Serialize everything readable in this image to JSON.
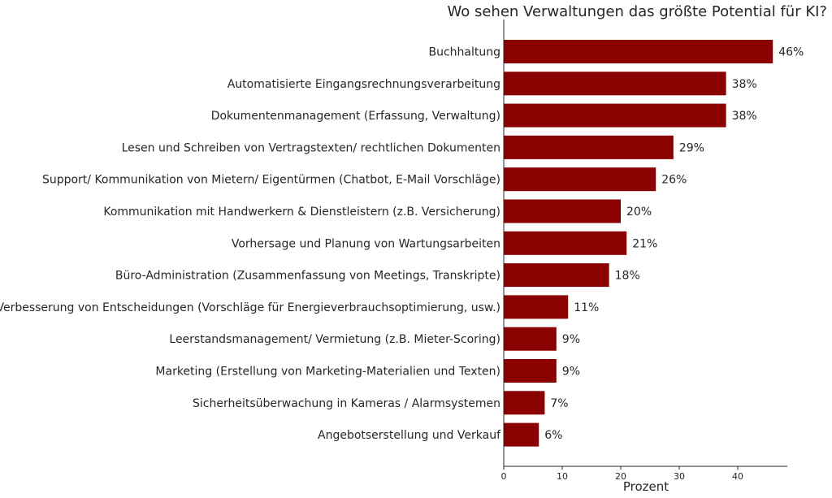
{
  "chart_data": {
    "type": "bar",
    "orientation": "horizontal",
    "title": "Wo sehen Verwaltungen das größte Potential für KI?",
    "xlabel": "Prozent",
    "ylabel": "",
    "xlim": [
      0,
      48
    ],
    "xticks": [
      "0",
      "10",
      "20",
      "30",
      "40"
    ],
    "grid": false,
    "bar_color": "#8b0000",
    "categories": [
      "Buchhaltung",
      "Automatisierte Eingangsrechnungsverarbeitung",
      "Dokumentenmanagement (Erfassung, Verwaltung)",
      "Lesen und Schreiben von Vertragstexten/ rechtlichen Dokumenten",
      "Support/ Kommunikation von Mietern/ Eigentürmen (Chatbot, E-Mail Vorschläge)",
      "Kommunikation mit Handwerkern & Dienstleistern (z.B. Versicherung)",
      "Vorhersage und Planung von Wartungsarbeiten",
      "Büro-Administration (Zusammenfassung von Meetings, Transkripte)",
      "Verbesserung von Entscheidungen (Vorschläge für Energieverbrauchsoptimierung, usw.)",
      "Leerstandsmanagement/ Vermietung (z.B. Mieter-Scoring)",
      "Marketing (Erstellung von Marketing-Materialien und Texten)",
      "Sicherheitsüberwachung in Kameras / Alarmsystemen",
      "Angebotserstellung und Verkauf"
    ],
    "values": [
      46,
      38,
      38,
      29,
      26,
      20,
      21,
      18,
      11,
      9,
      9,
      7,
      6
    ],
    "value_labels": [
      "46%",
      "38%",
      "38%",
      "29%",
      "26%",
      "20%",
      "21%",
      "18%",
      "11%",
      "9%",
      "9%",
      "7%",
      "6%"
    ]
  }
}
